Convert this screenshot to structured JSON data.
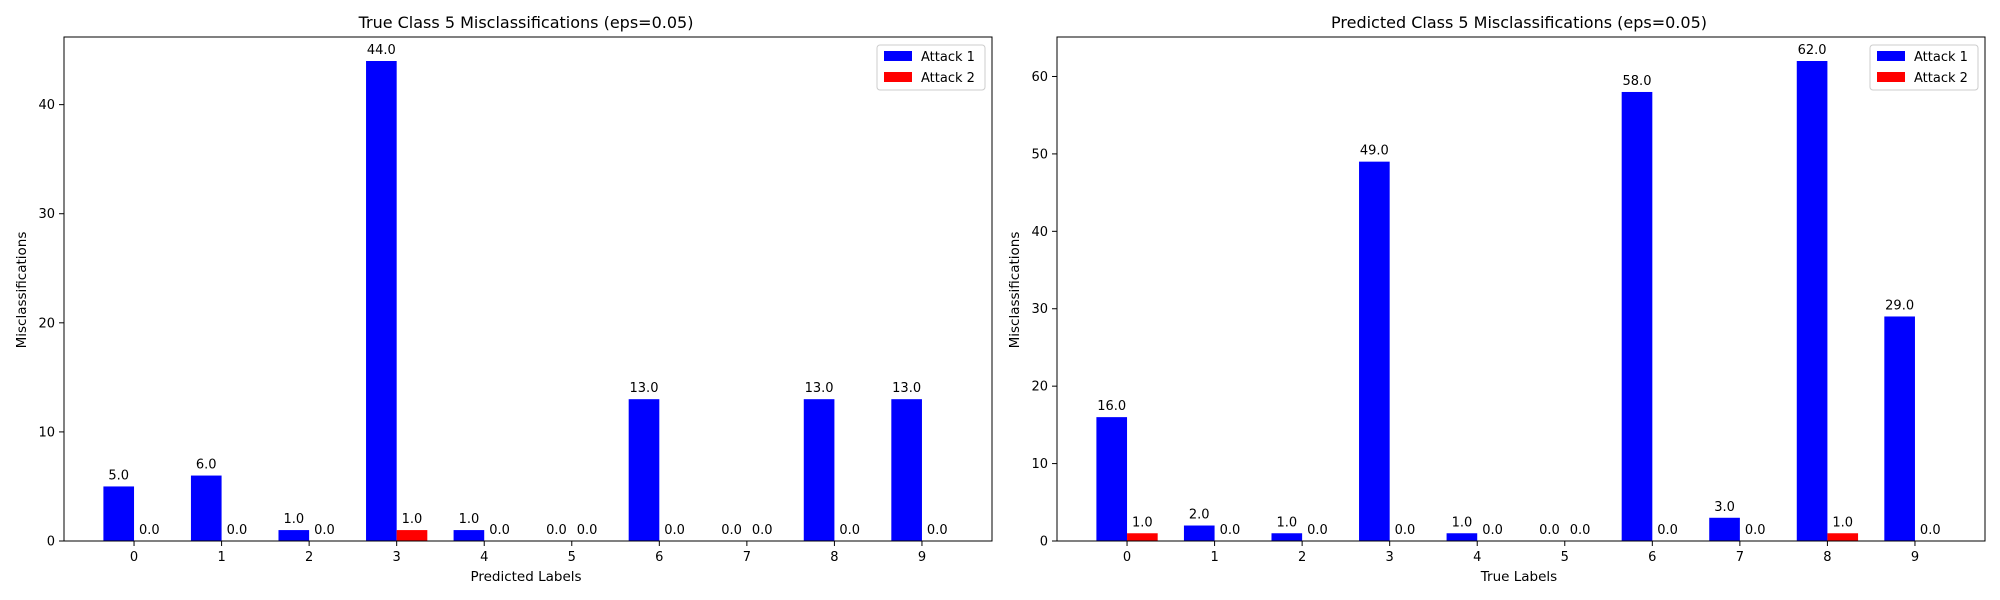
{
  "colors": {
    "attack1": "#0000ff",
    "attack2": "#ff0000"
  },
  "chart_data": [
    {
      "type": "bar",
      "title": "True Class 5 Misclassifications (eps=0.05)",
      "xlabel": "Predicted Labels",
      "ylabel": "Misclassifications",
      "categories": [
        "0",
        "1",
        "2",
        "3",
        "4",
        "5",
        "6",
        "7",
        "8",
        "9"
      ],
      "series": [
        {
          "name": "Attack 1",
          "color": "#0000ff",
          "values": [
            5,
            6,
            1,
            44,
            1,
            0,
            13,
            0,
            13,
            13
          ],
          "labels": [
            "5.0",
            "6.0",
            "1.0",
            "44.0",
            "1.0",
            "0.0",
            "13.0",
            "0.0",
            "13.0",
            "13.0"
          ]
        },
        {
          "name": "Attack 2",
          "color": "#ff0000",
          "values": [
            0,
            0,
            0,
            1,
            0,
            0,
            0,
            0,
            0,
            0
          ],
          "labels": [
            "0.0",
            "0.0",
            "0.0",
            "1.0",
            "0.0",
            "0.0",
            "0.0",
            "0.0",
            "0.0",
            "0.0"
          ]
        }
      ],
      "ylim": [
        0,
        46.2
      ],
      "yticks": [
        0,
        10,
        20,
        30,
        40
      ],
      "legend": "top-right",
      "grid": false
    },
    {
      "type": "bar",
      "title": "Predicted Class 5 Misclassifications (eps=0.05)",
      "xlabel": "True Labels",
      "ylabel": "Misclassifications",
      "categories": [
        "0",
        "1",
        "2",
        "3",
        "4",
        "5",
        "6",
        "7",
        "8",
        "9"
      ],
      "series": [
        {
          "name": "Attack 1",
          "color": "#0000ff",
          "values": [
            16,
            2,
            1,
            49,
            1,
            0,
            58,
            3,
            62,
            29
          ],
          "labels": [
            "16.0",
            "2.0",
            "1.0",
            "49.0",
            "1.0",
            "0.0",
            "58.0",
            "3.0",
            "62.0",
            "29.0"
          ]
        },
        {
          "name": "Attack 2",
          "color": "#ff0000",
          "values": [
            1,
            0,
            0,
            0,
            0,
            0,
            0,
            0,
            1,
            0
          ],
          "labels": [
            "1.0",
            "0.0",
            "0.0",
            "0.0",
            "0.0",
            "0.0",
            "0.0",
            "0.0",
            "1.0",
            "0.0"
          ]
        }
      ],
      "ylim": [
        0,
        65.1
      ],
      "yticks": [
        0,
        10,
        20,
        30,
        40,
        50,
        60
      ],
      "legend": "top-right",
      "grid": false
    }
  ]
}
